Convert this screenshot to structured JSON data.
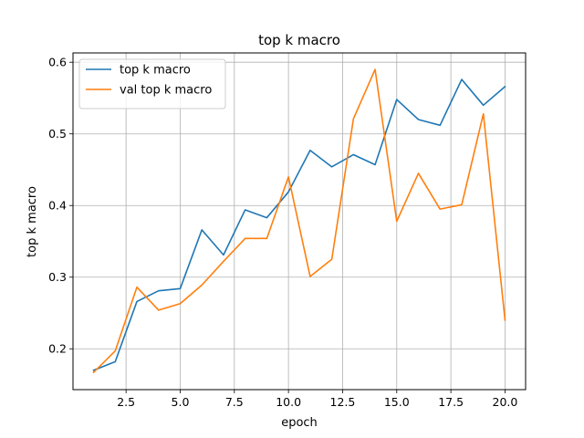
{
  "chart_data": {
    "type": "line",
    "title": "top k macro",
    "xlabel": "epoch",
    "ylabel": "top k macro",
    "xlim": [
      0.05,
      20.95
    ],
    "ylim": [
      0.143,
      0.613
    ],
    "xticks": [
      2.5,
      5.0,
      7.5,
      10.0,
      12.5,
      15.0,
      17.5,
      20.0
    ],
    "xtick_labels": [
      "2.5",
      "5.0",
      "7.5",
      "10.0",
      "12.5",
      "15.0",
      "17.5",
      "20.0"
    ],
    "yticks": [
      0.2,
      0.3,
      0.4,
      0.5,
      0.6
    ],
    "ytick_labels": [
      "0.2",
      "0.3",
      "0.4",
      "0.5",
      "0.6"
    ],
    "grid": true,
    "legend_position": "top-left",
    "x": [
      1,
      2,
      3,
      4,
      5,
      6,
      7,
      8,
      9,
      10,
      11,
      12,
      13,
      14,
      15,
      16,
      17,
      18,
      19,
      20
    ],
    "series": [
      {
        "name": "top k macro",
        "color": "#1f77b4",
        "values": [
          0.17,
          0.182,
          0.266,
          0.281,
          0.284,
          0.366,
          0.331,
          0.394,
          0.383,
          0.419,
          0.477,
          0.454,
          0.471,
          0.457,
          0.548,
          0.52,
          0.512,
          0.576,
          0.54,
          0.566
        ]
      },
      {
        "name": "val top k macro",
        "color": "#ff7f0e",
        "values": [
          0.167,
          0.197,
          0.286,
          0.254,
          0.263,
          0.289,
          0.322,
          0.354,
          0.354,
          0.44,
          0.301,
          0.325,
          0.521,
          0.59,
          0.378,
          0.445,
          0.395,
          0.401,
          0.528,
          0.24
        ]
      }
    ]
  }
}
